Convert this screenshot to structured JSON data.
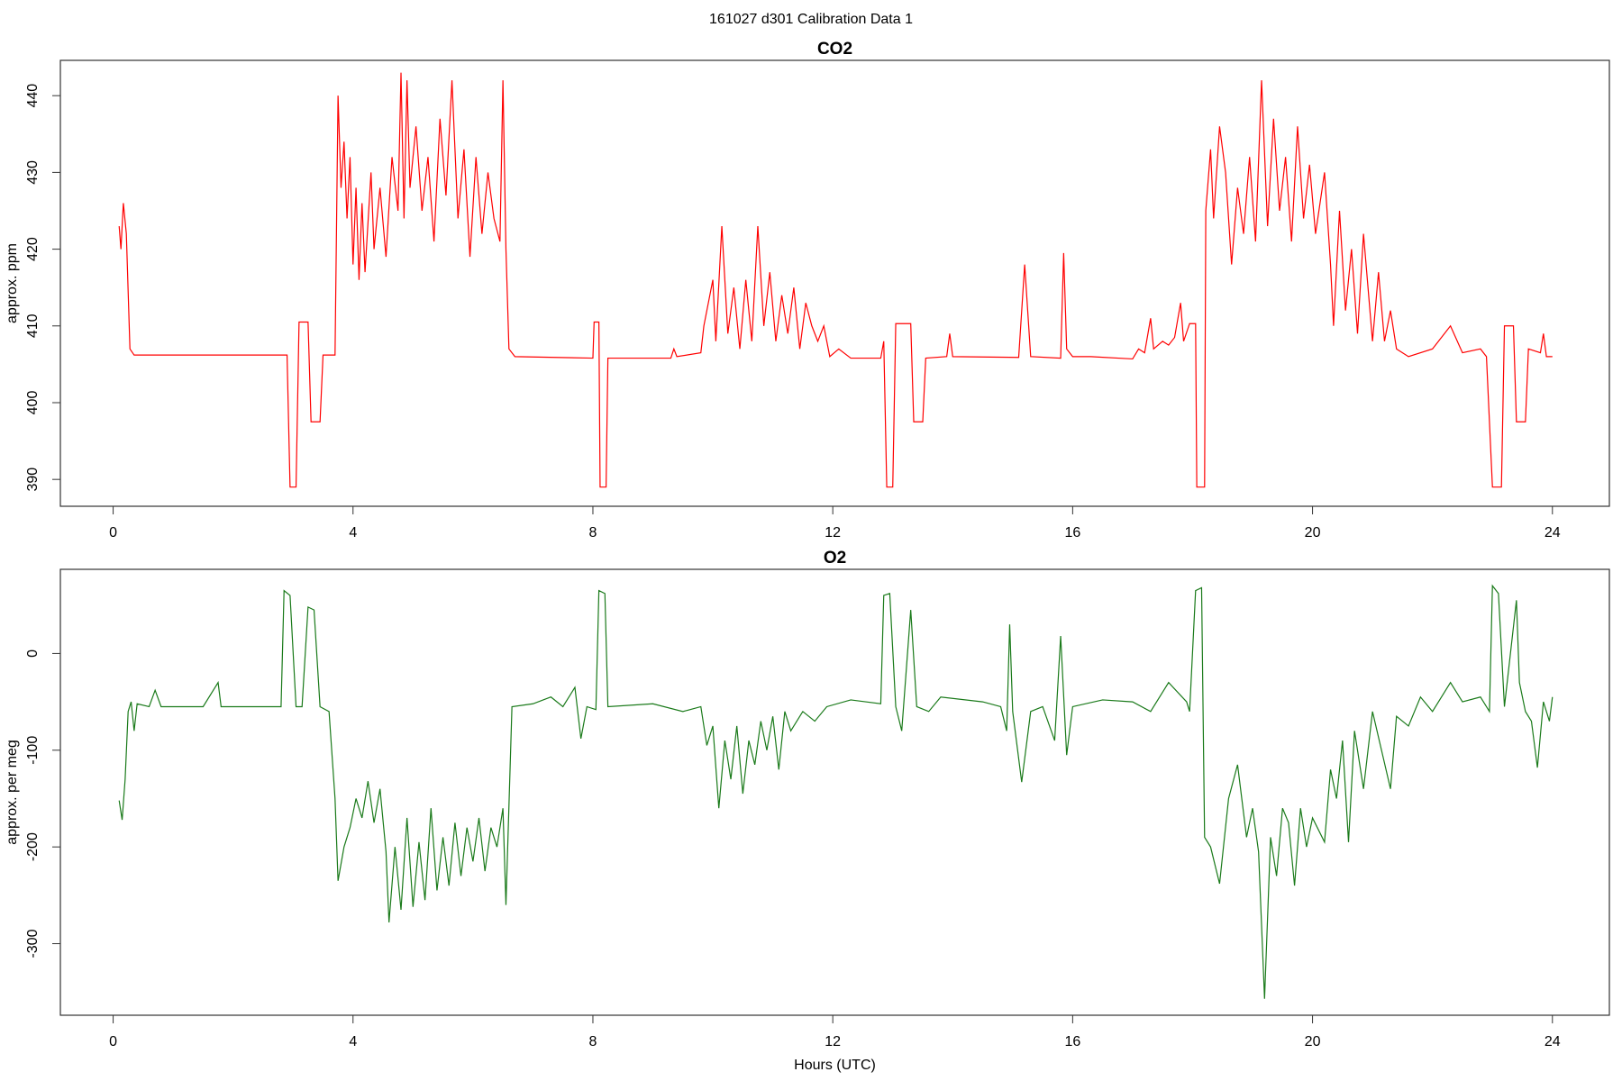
{
  "title": "161027   d301   Calibration Data 1",
  "chart_data": [
    {
      "type": "line",
      "title": "CO2",
      "y_label": "approx. ppm",
      "color": "#ff0000",
      "xlim": [
        -0.88,
        24.95
      ],
      "xticks": [
        0,
        4,
        8,
        12,
        16,
        20,
        24
      ],
      "ylim": [
        386.5,
        444.6
      ],
      "yticks": [
        390,
        400,
        410,
        420,
        430,
        440
      ],
      "x": [
        0.1,
        0.13,
        0.17,
        0.22,
        0.28,
        0.35,
        2.9,
        2.95,
        3.05,
        3.1,
        3.25,
        3.3,
        3.45,
        3.5,
        3.7,
        3.75,
        3.8,
        3.85,
        3.9,
        3.95,
        4.0,
        4.05,
        4.1,
        4.15,
        4.2,
        4.3,
        4.35,
        4.45,
        4.55,
        4.65,
        4.75,
        4.8,
        4.85,
        4.9,
        4.95,
        5.05,
        5.15,
        5.25,
        5.35,
        5.45,
        5.55,
        5.65,
        5.75,
        5.85,
        5.95,
        6.05,
        6.15,
        6.25,
        6.35,
        6.45,
        6.5,
        6.55,
        6.6,
        6.7,
        8.0,
        8.02,
        8.1,
        8.12,
        8.22,
        8.25,
        9.3,
        9.35,
        9.4,
        9.8,
        9.85,
        10.0,
        10.05,
        10.15,
        10.25,
        10.35,
        10.45,
        10.55,
        10.65,
        10.75,
        10.85,
        10.95,
        11.05,
        11.15,
        11.25,
        11.35,
        11.45,
        11.55,
        11.65,
        11.75,
        11.85,
        11.95,
        12.1,
        12.3,
        12.8,
        12.85,
        12.9,
        13.0,
        13.05,
        13.3,
        13.35,
        13.5,
        13.55,
        13.9,
        13.95,
        14.0,
        15.1,
        15.2,
        15.3,
        15.8,
        15.85,
        15.9,
        16.0,
        16.3,
        17.0,
        17.1,
        17.2,
        17.3,
        17.35,
        17.5,
        17.6,
        17.7,
        17.8,
        17.85,
        17.95,
        18.05,
        18.07,
        18.2,
        18.22,
        18.3,
        18.35,
        18.45,
        18.55,
        18.65,
        18.75,
        18.85,
        18.95,
        19.05,
        19.15,
        19.25,
        19.35,
        19.45,
        19.55,
        19.65,
        19.75,
        19.85,
        19.95,
        20.05,
        20.2,
        20.3,
        20.35,
        20.45,
        20.55,
        20.65,
        20.75,
        20.85,
        21.0,
        21.1,
        21.2,
        21.3,
        21.4,
        21.6,
        22.0,
        22.3,
        22.5,
        22.8,
        22.9,
        23.0,
        23.15,
        23.2,
        23.35,
        23.4,
        23.55,
        23.6,
        23.8,
        23.85,
        23.9,
        24.0
      ],
      "values": [
        423,
        420,
        426,
        422,
        407,
        406.2,
        406.2,
        389,
        389,
        410.5,
        410.5,
        397.5,
        397.5,
        406.2,
        406.2,
        440,
        428,
        434,
        424,
        432,
        418,
        428,
        416,
        426,
        417,
        430,
        420,
        428,
        419,
        432,
        425,
        443,
        424,
        442,
        428,
        436,
        425,
        432,
        421,
        437,
        427,
        442,
        424,
        433,
        419,
        432,
        422,
        430,
        424,
        421,
        442,
        420,
        407,
        406,
        405.8,
        410.5,
        410.5,
        389,
        389,
        405.8,
        405.8,
        407,
        406,
        406.5,
        410,
        416,
        408,
        423,
        409,
        415,
        407,
        416,
        408,
        423,
        410,
        417,
        408,
        414,
        409,
        415,
        407,
        413,
        410,
        408,
        410,
        406,
        407,
        405.8,
        405.8,
        408,
        389,
        389,
        410.3,
        410.3,
        397.5,
        397.5,
        405.8,
        406,
        409,
        406,
        405.9,
        418,
        406,
        405.8,
        419.5,
        407,
        406,
        406,
        405.7,
        407,
        406.5,
        411,
        407,
        408,
        407.5,
        408.5,
        413,
        408,
        410.3,
        410.3,
        389,
        389,
        425,
        433,
        424,
        436,
        430,
        418,
        428,
        422,
        432,
        421,
        442,
        423,
        437,
        425,
        432,
        421,
        436,
        424,
        431,
        422,
        430,
        418,
        410,
        425,
        412,
        420,
        409,
        422,
        408,
        417,
        408,
        412,
        407,
        406,
        407,
        410,
        406.5,
        407,
        406,
        389,
        389,
        410,
        410,
        397.5,
        397.5,
        407,
        406.5,
        409,
        406,
        406
      ]
    },
    {
      "type": "line",
      "title": "O2",
      "y_label": "approx. per meg",
      "x_label": "Hours (UTC)",
      "color": "#1a7a1a",
      "xlim": [
        -0.88,
        24.95
      ],
      "xticks": [
        0,
        4,
        8,
        12,
        16,
        20,
        24
      ],
      "ylim": [
        -374,
        87
      ],
      "yticks": [
        0,
        -100,
        -200,
        -300
      ],
      "x": [
        0.1,
        0.15,
        0.2,
        0.25,
        0.3,
        0.35,
        0.4,
        0.6,
        0.7,
        0.8,
        1.5,
        1.75,
        1.8,
        2.8,
        2.85,
        2.95,
        3.05,
        3.15,
        3.25,
        3.35,
        3.45,
        3.6,
        3.7,
        3.75,
        3.85,
        3.95,
        4.05,
        4.15,
        4.25,
        4.35,
        4.45,
        4.55,
        4.6,
        4.7,
        4.8,
        4.9,
        5.0,
        5.1,
        5.2,
        5.3,
        5.4,
        5.5,
        5.6,
        5.7,
        5.8,
        5.9,
        6.0,
        6.1,
        6.2,
        6.3,
        6.4,
        6.5,
        6.55,
        6.65,
        7.0,
        7.3,
        7.5,
        7.7,
        7.8,
        7.9,
        8.05,
        8.1,
        8.2,
        8.25,
        9.0,
        9.5,
        9.8,
        9.9,
        10.0,
        10.1,
        10.2,
        10.3,
        10.4,
        10.5,
        10.6,
        10.7,
        10.8,
        10.9,
        11.0,
        11.1,
        11.2,
        11.3,
        11.5,
        11.7,
        11.9,
        12.3,
        12.8,
        12.85,
        12.95,
        13.05,
        13.15,
        13.3,
        13.4,
        13.6,
        13.8,
        14.5,
        14.8,
        14.9,
        14.95,
        15.0,
        15.15,
        15.3,
        15.5,
        15.7,
        15.8,
        15.9,
        16.0,
        16.5,
        17.0,
        17.3,
        17.6,
        17.9,
        17.95,
        18.05,
        18.15,
        18.2,
        18.3,
        18.45,
        18.6,
        18.75,
        18.9,
        19.0,
        19.1,
        19.2,
        19.3,
        19.4,
        19.5,
        19.6,
        19.7,
        19.8,
        19.9,
        20.0,
        20.2,
        20.3,
        20.4,
        20.5,
        20.6,
        20.7,
        20.85,
        21.0,
        21.15,
        21.3,
        21.4,
        21.6,
        21.8,
        22.0,
        22.3,
        22.5,
        22.8,
        22.95,
        23.0,
        23.1,
        23.2,
        23.4,
        23.45,
        23.55,
        23.65,
        23.75,
        23.85,
        23.95,
        24.0
      ],
      "values": [
        -152,
        -172,
        -130,
        -60,
        -50,
        -80,
        -52,
        -55,
        -38,
        -55,
        -55,
        -30,
        -55,
        -55,
        65,
        60,
        -55,
        -55,
        48,
        45,
        -55,
        -60,
        -150,
        -235,
        -200,
        -180,
        -150,
        -170,
        -132,
        -175,
        -140,
        -205,
        -278,
        -200,
        -265,
        -170,
        -262,
        -195,
        -255,
        -160,
        -245,
        -190,
        -240,
        -175,
        -230,
        -180,
        -215,
        -170,
        -225,
        -180,
        -200,
        -160,
        -260,
        -55,
        -52,
        -45,
        -55,
        -35,
        -88,
        -55,
        -58,
        65,
        62,
        -55,
        -52,
        -60,
        -55,
        -95,
        -75,
        -160,
        -90,
        -130,
        -75,
        -145,
        -90,
        -115,
        -70,
        -100,
        -65,
        -120,
        -60,
        -80,
        -60,
        -70,
        -55,
        -48,
        -52,
        60,
        62,
        -55,
        -80,
        45,
        -55,
        -60,
        -45,
        -50,
        -55,
        -80,
        30,
        -60,
        -133,
        -60,
        -55,
        -90,
        18,
        -105,
        -55,
        -48,
        -50,
        -60,
        -30,
        -50,
        -60,
        65,
        68,
        -190,
        -200,
        -238,
        -150,
        -115,
        -190,
        -160,
        -205,
        -357,
        -190,
        -230,
        -160,
        -175,
        -240,
        -160,
        -200,
        -170,
        -195,
        -120,
        -150,
        -90,
        -195,
        -80,
        -140,
        -60,
        -100,
        -140,
        -65,
        -75,
        -45,
        -60,
        -30,
        -50,
        -45,
        -60,
        70,
        62,
        -55,
        55,
        -30,
        -60,
        -70,
        -118,
        -50,
        -70,
        -45
      ]
    }
  ]
}
